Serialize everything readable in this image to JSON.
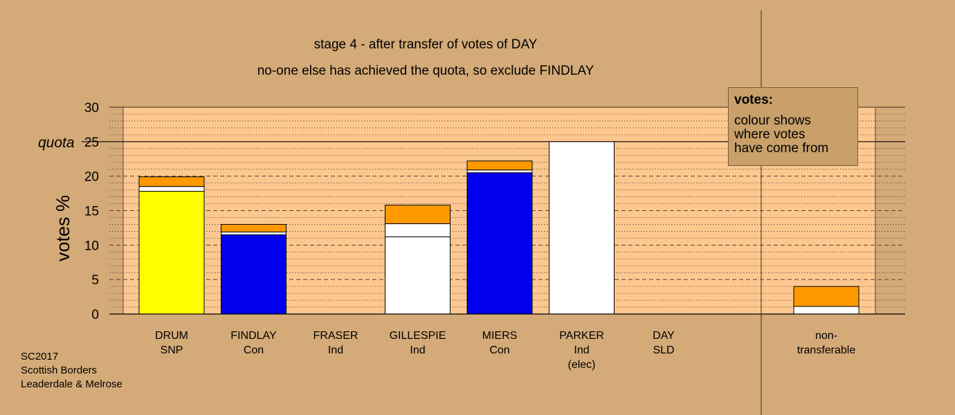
{
  "chart_data": {
    "type": "bar",
    "stacked": true,
    "title": "stage 4 - after transfer of votes of DAY",
    "subtitle": "no-one else has achieved the quota, so exclude FINDLAY",
    "ylabel": "votes %",
    "ylim": [
      0,
      30
    ],
    "yticks": [
      "0",
      "5",
      "10",
      "15",
      "20",
      "25",
      "30"
    ],
    "quota_label": "quota",
    "quota_value": 25,
    "grid": "dotted minor at 1, dashed major at 5",
    "categories": [
      {
        "name": "DRUM",
        "party": "SNP",
        "extra": ""
      },
      {
        "name": "FINDLAY",
        "party": "Con",
        "extra": ""
      },
      {
        "name": "FRASER",
        "party": "Ind",
        "extra": ""
      },
      {
        "name": "GILLESPIE",
        "party": "Ind",
        "extra": ""
      },
      {
        "name": "MIERS",
        "party": "Con",
        "extra": ""
      },
      {
        "name": "PARKER",
        "party": "Ind",
        "extra": "(elec)"
      },
      {
        "name": "DAY",
        "party": "SLD",
        "extra": ""
      },
      {
        "name": "non-",
        "party": "transferable",
        "extra": ""
      }
    ],
    "stacks": [
      [
        {
          "value": 17.8,
          "color": "#ffff00"
        },
        {
          "value": 0.7,
          "color": "#ffffff"
        },
        {
          "value": 1.4,
          "color": "#ff9900"
        }
      ],
      [
        {
          "value": 11.5,
          "color": "#0000ee"
        },
        {
          "value": 0.4,
          "color": "#ffffff"
        },
        {
          "value": 1.1,
          "color": "#ff9900"
        }
      ],
      [],
      [
        {
          "value": 11.2,
          "color": "#ffffff"
        },
        {
          "value": 1.9,
          "color": "#ffffff"
        },
        {
          "value": 2.7,
          "color": "#ff9900"
        }
      ],
      [
        {
          "value": 20.5,
          "color": "#0000ee"
        },
        {
          "value": 0.4,
          "color": "#ffffff"
        },
        {
          "value": 1.3,
          "color": "#ff9900"
        }
      ],
      [
        {
          "value": 25.0,
          "color": "#ffffff"
        }
      ],
      [],
      [
        {
          "value": 1.1,
          "color": "#ffffff"
        },
        {
          "value": 2.9,
          "color": "#ff9900"
        }
      ]
    ],
    "colors": {
      "background": "#d4aa78",
      "plot": "#fcc890",
      "snp": "#ffff00",
      "con": "#0000ee",
      "day": "#ff9900"
    }
  },
  "legend": {
    "heading": "votes:",
    "lines": [
      "colour shows",
      "where votes",
      "have come from"
    ]
  },
  "footer": [
    "SC2017",
    "Scottish Borders",
    "Leaderdale & Melrose"
  ]
}
